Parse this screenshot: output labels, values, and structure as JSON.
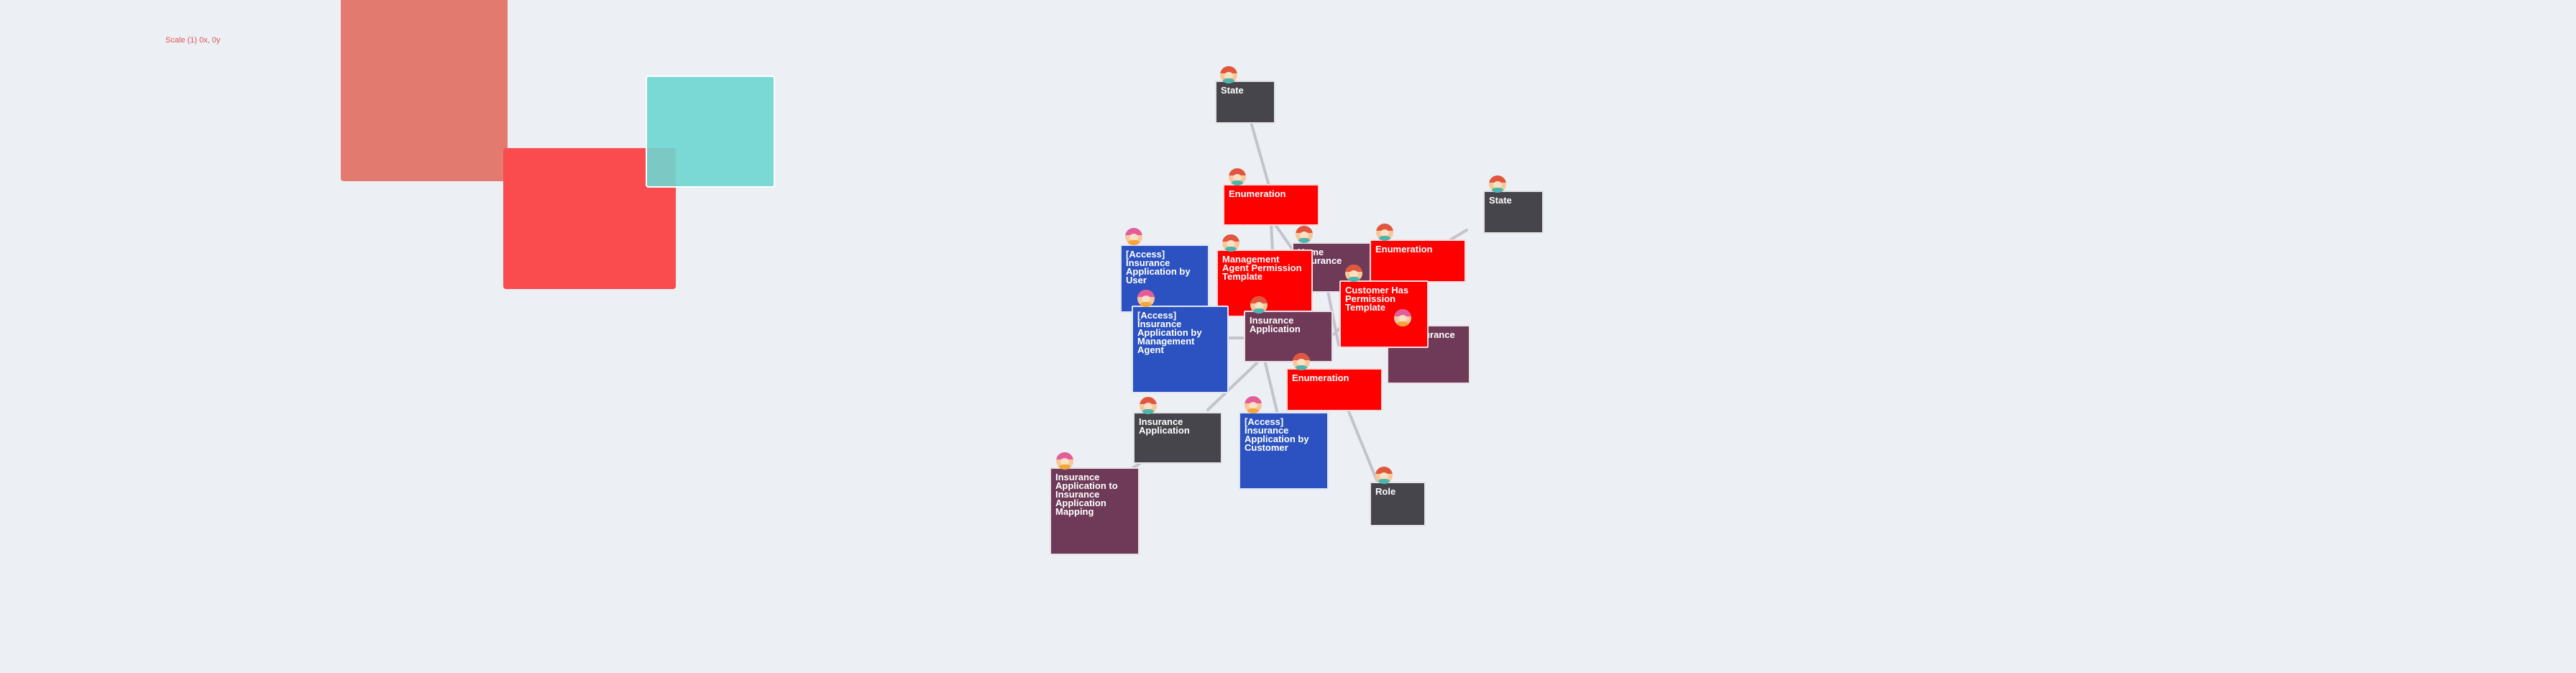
{
  "canvas": {
    "scale_label": "Scale (1) 0x, 0y"
  },
  "nodes": [
    {
      "id": "state-top",
      "label": "State",
      "type": "dark"
    },
    {
      "id": "enum-1",
      "label": "Enumeration",
      "type": "enum"
    },
    {
      "id": "state-right",
      "label": "State",
      "type": "dark"
    },
    {
      "id": "access-user",
      "label": "[Access] Insurance Application by User",
      "type": "access"
    },
    {
      "id": "mgmt-agent-perm",
      "label": "Management Agent Permission Template",
      "type": "enum"
    },
    {
      "id": "home-insurance",
      "label": "Home Insurance",
      "type": "plum"
    },
    {
      "id": "enum-2",
      "label": "Enumeration",
      "type": "enum"
    },
    {
      "id": "customer-perm",
      "label": "Customer Has Permission Template",
      "type": "enum"
    },
    {
      "id": "access-mgmt-agent",
      "label": "[Access] Insurance Application by Management Agent",
      "type": "access"
    },
    {
      "id": "insurance-app-center",
      "label": "Insurance Application",
      "type": "plum"
    },
    {
      "id": "car-insurance",
      "label": "Car Insurance Petition",
      "type": "plum"
    },
    {
      "id": "enum-3",
      "label": "Enumeration",
      "type": "enum"
    },
    {
      "id": "insurance-app-dark",
      "label": "Insurance Application",
      "type": "dark"
    },
    {
      "id": "access-customer",
      "label": "[Access] Insurance Application by Customer",
      "type": "access"
    },
    {
      "id": "mapping",
      "label": "Insurance Application to Insurance Application Mapping",
      "type": "plum"
    },
    {
      "id": "role",
      "label": "Role",
      "type": "dark"
    }
  ],
  "colors": {
    "enum": "#ff0000",
    "access": "#2b52c0",
    "dark": "#47454c",
    "plum": "#6e3a58",
    "link": "#c3c4ca",
    "background": "#eceff4"
  },
  "icons": {
    "node_avatar": "user-avatar-icon"
  }
}
